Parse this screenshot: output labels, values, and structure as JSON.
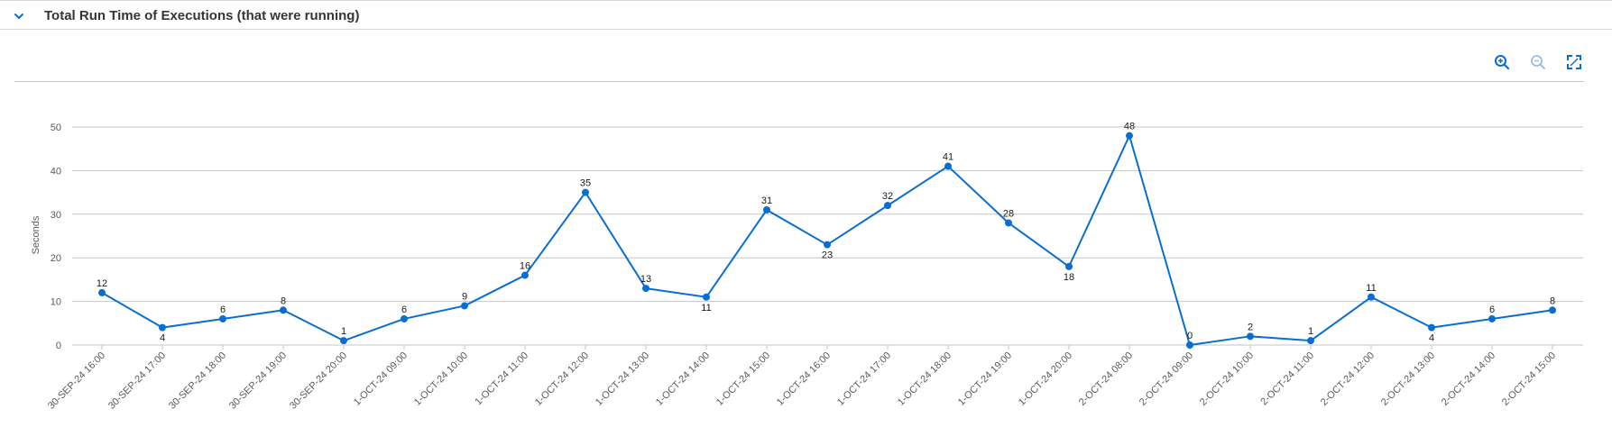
{
  "panel": {
    "title": "Total Run Time of Executions (that were running)",
    "collapse_icon": "chevron-down-icon"
  },
  "toolbar": {
    "zoom_in_icon": "zoom-in-icon",
    "zoom_out_icon": "zoom-out-icon",
    "fullscreen_icon": "fullscreen-icon"
  },
  "colors": {
    "accent": "#0a6ed1",
    "line": "#0a6ed1",
    "grid": "#c6c6c6"
  },
  "chart_data": {
    "type": "line",
    "title": "",
    "xlabel": "",
    "ylabel": "Seconds",
    "ylim": [
      0,
      50
    ],
    "yticks": [
      0,
      10,
      20,
      30,
      40,
      50
    ],
    "grid": true,
    "categories": [
      "30-SEP-24 16:00",
      "30-SEP-24 17:00",
      "30-SEP-24 18:00",
      "30-SEP-24 19:00",
      "30-SEP-24 20:00",
      "1-OCT-24 09:00",
      "1-OCT-24 10:00",
      "1-OCT-24 11:00",
      "1-OCT-24 12:00",
      "1-OCT-24 13:00",
      "1-OCT-24 14:00",
      "1-OCT-24 15:00",
      "1-OCT-24 16:00",
      "1-OCT-24 17:00",
      "1-OCT-24 18:00",
      "1-OCT-24 19:00",
      "1-OCT-24 20:00",
      "2-OCT-24 08:00",
      "2-OCT-24 09:00",
      "2-OCT-24 10:00",
      "2-OCT-24 11:00",
      "2-OCT-24 12:00",
      "2-OCT-24 13:00",
      "2-OCT-24 14:00",
      "2-OCT-24 15:00"
    ],
    "series": [
      {
        "values": [
          12,
          4,
          6,
          8,
          1,
          6,
          9,
          16,
          35,
          13,
          11,
          31,
          23,
          32,
          41,
          28,
          18,
          48,
          0,
          2,
          1,
          11,
          4,
          6,
          8
        ],
        "label_position": [
          "above",
          "below",
          "above",
          "above",
          "above",
          "above",
          "above",
          "above",
          "above",
          "above",
          "below",
          "above",
          "below",
          "above",
          "above",
          "above",
          "below",
          "above",
          "above",
          "above",
          "above",
          "above",
          "below",
          "above",
          "above"
        ]
      }
    ]
  }
}
